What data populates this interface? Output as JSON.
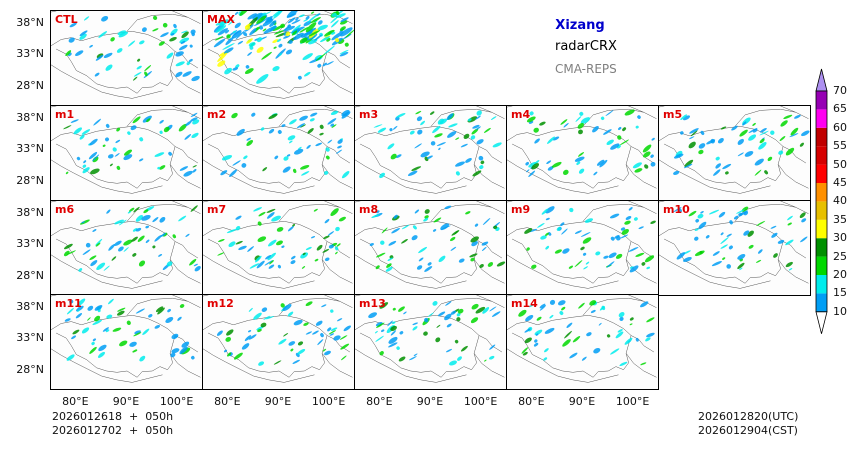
{
  "figure": {
    "region": "Xizang",
    "variable": "radarCRX",
    "model": "CMA-REPS",
    "init_utc_line": "2026012618  +  050h",
    "init_cst_line": "2026012702  +  050h",
    "valid_utc": "2026012820(UTC)",
    "valid_cst": "2026012904(CST)"
  },
  "chart_data": {
    "type": "heatmap",
    "title": "Xizang radarCRX CMA-REPS",
    "panels": [
      "CTL",
      "MAX",
      "m1",
      "m2",
      "m3",
      "m4",
      "m5",
      "m6",
      "m7",
      "m8",
      "m9",
      "m10",
      "m11",
      "m12",
      "m13",
      "m14"
    ],
    "ylabel": "",
    "xlabel": "",
    "yticks": [
      "38°N",
      "33°N",
      "28°N"
    ],
    "xticks": [
      "80°E",
      "90°E",
      "100°E"
    ],
    "lat_values": [
      38,
      33,
      28
    ],
    "lon_values": [
      80,
      90,
      100
    ],
    "xlim": [
      75,
      105
    ],
    "ylim": [
      25,
      40
    ],
    "colorbar": {
      "levels": [
        "10",
        "15",
        "20",
        "25",
        "30",
        "35",
        "40",
        "45",
        "50",
        "55",
        "60",
        "65",
        "70"
      ],
      "colors": [
        "#ffffff",
        "#009ef5",
        "#00ecec",
        "#00d800",
        "#009000",
        "#ffff00",
        "#e7c000",
        "#ff9000",
        "#ff0000",
        "#d60000",
        "#c00000",
        "#ff00f0",
        "#9600b4",
        "#ad90f0"
      ],
      "extend": "both"
    }
  }
}
